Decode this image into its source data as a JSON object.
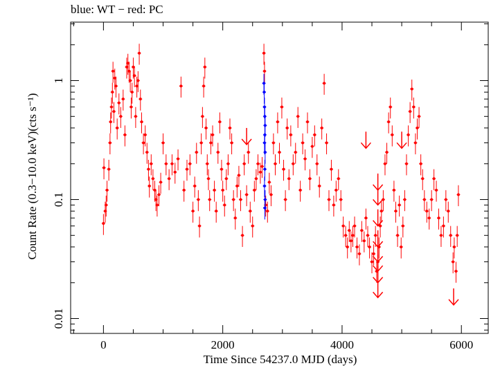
{
  "chart_data": {
    "type": "scatter",
    "title": "blue: WT − red: PC",
    "xlabel": "Time Since 54237.0 MJD (days)",
    "ylabel": "Count Rate (0.3−10.0 keV)(cts s⁻¹)",
    "xlim": [
      -550,
      6450
    ],
    "ylim": [
      0.0075,
      3.1
    ],
    "yscale": "log",
    "grid": false,
    "x_ticks": [
      0,
      2000,
      4000,
      6000
    ],
    "x_tick_labels": [
      "0",
      "2000",
      "4000",
      "6000"
    ],
    "y_ticks": [
      0.01,
      0.1,
      1
    ],
    "y_tick_labels": [
      "0.01",
      "0.1",
      "1"
    ],
    "series": [
      {
        "name": "PC",
        "color": "#ff0000",
        "points": [
          [
            0,
            0.063
          ],
          [
            8,
            0.185
          ],
          [
            30,
            0.08
          ],
          [
            45,
            0.09
          ],
          [
            60,
            0.12
          ],
          [
            90,
            0.18
          ],
          [
            110,
            0.3
          ],
          [
            120,
            0.45
          ],
          [
            135,
            0.6
          ],
          [
            150,
            0.8
          ],
          [
            160,
            1.2
          ],
          [
            175,
            0.55
          ],
          [
            190,
            1.05
          ],
          [
            210,
            0.9
          ],
          [
            230,
            0.4
          ],
          [
            260,
            0.65
          ],
          [
            290,
            0.5
          ],
          [
            330,
            0.7
          ],
          [
            360,
            0.35
          ],
          [
            390,
            1.3
          ],
          [
            410,
            1.4
          ],
          [
            430,
            1.2
          ],
          [
            450,
            1.0
          ],
          [
            465,
            0.6
          ],
          [
            480,
            0.8
          ],
          [
            500,
            1.3
          ],
          [
            520,
            1.1
          ],
          [
            540,
            0.5
          ],
          [
            560,
            0.9
          ],
          [
            580,
            1.0
          ],
          [
            600,
            1.7
          ],
          [
            620,
            0.7
          ],
          [
            640,
            0.45
          ],
          [
            670,
            0.3
          ],
          [
            700,
            0.35
          ],
          [
            730,
            0.25
          ],
          [
            755,
            0.18
          ],
          [
            770,
            0.13
          ],
          [
            800,
            0.2
          ],
          [
            830,
            0.15
          ],
          [
            860,
            0.12
          ],
          [
            880,
            0.1
          ],
          [
            900,
            0.09
          ],
          [
            930,
            0.11
          ],
          [
            960,
            0.14
          ],
          [
            1000,
            0.3
          ],
          [
            1050,
            0.2
          ],
          [
            1100,
            0.15
          ],
          [
            1150,
            0.2
          ],
          [
            1200,
            0.17
          ],
          [
            1250,
            0.22
          ],
          [
            1300,
            0.9
          ],
          [
            1350,
            0.12
          ],
          [
            1400,
            0.18
          ],
          [
            1450,
            0.2
          ],
          [
            1500,
            0.08
          ],
          [
            1530,
            0.13
          ],
          [
            1560,
            0.25
          ],
          [
            1590,
            0.1
          ],
          [
            1610,
            0.06
          ],
          [
            1640,
            0.3
          ],
          [
            1660,
            0.5
          ],
          [
            1680,
            0.9
          ],
          [
            1700,
            1.3
          ],
          [
            1720,
            0.4
          ],
          [
            1740,
            0.2
          ],
          [
            1760,
            0.15
          ],
          [
            1780,
            0.1
          ],
          [
            1800,
            0.3
          ],
          [
            1830,
            0.35
          ],
          [
            1860,
            0.12
          ],
          [
            1890,
            0.08
          ],
          [
            1920,
            0.25
          ],
          [
            1950,
            0.45
          ],
          [
            1980,
            0.18
          ],
          [
            2000,
            0.12
          ],
          [
            2030,
            0.09
          ],
          [
            2060,
            0.15
          ],
          [
            2090,
            0.2
          ],
          [
            2120,
            0.4
          ],
          [
            2150,
            0.3
          ],
          [
            2180,
            0.1
          ],
          [
            2210,
            0.07
          ],
          [
            2240,
            0.13
          ],
          [
            2270,
            0.16
          ],
          [
            2300,
            0.1
          ],
          [
            2330,
            0.05
          ],
          [
            2360,
            0.2
          ],
          [
            2400,
            0.11
          ],
          [
            2430,
            0.25
          ],
          [
            2460,
            0.08
          ],
          [
            2500,
            0.06
          ],
          [
            2530,
            0.12
          ],
          [
            2560,
            0.15
          ],
          [
            2590,
            0.2
          ],
          [
            2630,
            0.17
          ],
          [
            2660,
            0.19
          ],
          [
            2690,
            1.7
          ],
          [
            2700,
            1.2
          ],
          [
            2720,
            0.09
          ],
          [
            2750,
            0.08
          ],
          [
            2780,
            0.14
          ],
          [
            2810,
            0.11
          ],
          [
            2850,
            0.3
          ],
          [
            2880,
            0.2
          ],
          [
            2920,
            0.45
          ],
          [
            2950,
            0.25
          ],
          [
            2990,
            0.6
          ],
          [
            3020,
            0.18
          ],
          [
            3050,
            0.1
          ],
          [
            3080,
            0.4
          ],
          [
            3110,
            0.15
          ],
          [
            3140,
            0.35
          ],
          [
            3180,
            0.2
          ],
          [
            3220,
            0.25
          ],
          [
            3260,
            0.5
          ],
          [
            3300,
            0.12
          ],
          [
            3340,
            0.3
          ],
          [
            3380,
            0.22
          ],
          [
            3420,
            0.45
          ],
          [
            3460,
            0.15
          ],
          [
            3500,
            0.28
          ],
          [
            3540,
            0.35
          ],
          [
            3580,
            0.2
          ],
          [
            3620,
            0.13
          ],
          [
            3660,
            0.4
          ],
          [
            3700,
            0.95
          ],
          [
            3740,
            0.3
          ],
          [
            3780,
            0.1
          ],
          [
            3820,
            0.18
          ],
          [
            3860,
            0.09
          ],
          [
            3900,
            0.12
          ],
          [
            3940,
            0.15
          ],
          [
            3980,
            0.1
          ],
          [
            4020,
            0.06
          ],
          [
            4060,
            0.05
          ],
          [
            4090,
            0.04
          ],
          [
            4120,
            0.055
          ],
          [
            4150,
            0.045
          ],
          [
            4180,
            0.05
          ],
          [
            4210,
            0.06
          ],
          [
            4250,
            0.04
          ],
          [
            4290,
            0.035
          ],
          [
            4330,
            0.055
          ],
          [
            4370,
            0.045
          ],
          [
            4400,
            0.07
          ],
          [
            4430,
            0.05
          ],
          [
            4460,
            0.04
          ],
          [
            4500,
            0.03
          ],
          [
            4530,
            0.035
          ],
          [
            4560,
            0.05
          ],
          [
            4580,
            0.025
          ],
          [
            4600,
            0.03
          ],
          [
            4620,
            0.04
          ],
          [
            4640,
            0.06
          ],
          [
            4660,
            0.08
          ],
          [
            4690,
            0.1
          ],
          [
            4720,
            0.2
          ],
          [
            4750,
            0.25
          ],
          [
            4780,
            0.45
          ],
          [
            4810,
            0.6
          ],
          [
            4840,
            0.35
          ],
          [
            4870,
            0.12
          ],
          [
            4900,
            0.08
          ],
          [
            4930,
            0.05
          ],
          [
            4960,
            0.09
          ],
          [
            4990,
            0.04
          ],
          [
            5020,
            0.06
          ],
          [
            5050,
            0.1
          ],
          [
            5080,
            0.2
          ],
          [
            5110,
            0.35
          ],
          [
            5140,
            0.55
          ],
          [
            5170,
            0.85
          ],
          [
            5200,
            0.6
          ],
          [
            5230,
            0.3
          ],
          [
            5260,
            0.4
          ],
          [
            5290,
            0.5
          ],
          [
            5320,
            0.2
          ],
          [
            5350,
            0.15
          ],
          [
            5380,
            0.1
          ],
          [
            5420,
            0.08
          ],
          [
            5460,
            0.07
          ],
          [
            5500,
            0.1
          ],
          [
            5540,
            0.15
          ],
          [
            5580,
            0.12
          ],
          [
            5620,
            0.07
          ],
          [
            5660,
            0.05
          ],
          [
            5700,
            0.06
          ],
          [
            5740,
            0.1
          ],
          [
            5780,
            0.08
          ],
          [
            5820,
            0.05
          ],
          [
            5860,
            0.03
          ],
          [
            5880,
            0.04
          ],
          [
            5910,
            0.025
          ],
          [
            5930,
            0.05
          ],
          [
            5950,
            0.11
          ]
        ]
      },
      {
        "name": "WT",
        "color": "#0000ff",
        "points": [
          [
            2690,
            0.95
          ],
          [
            2695,
            0.8
          ],
          [
            2700,
            0.6
          ],
          [
            2705,
            0.5
          ],
          [
            2710,
            0.42
          ],
          [
            2705,
            0.35
          ],
          [
            2700,
            0.3
          ],
          [
            2710,
            0.25
          ],
          [
            2705,
            0.18
          ],
          [
            2700,
            0.13
          ],
          [
            2710,
            0.1
          ],
          [
            2705,
            0.085
          ]
        ]
      }
    ],
    "upper_limits": [
      {
        "x": 2400,
        "y": 0.29
      },
      {
        "x": 4400,
        "y": 0.27
      },
      {
        "x": 4600,
        "y": 0.12
      },
      {
        "x": 4600,
        "y": 0.09
      },
      {
        "x": 4600,
        "y": 0.06
      },
      {
        "x": 4600,
        "y": 0.04
      },
      {
        "x": 4600,
        "y": 0.03
      },
      {
        "x": 4600,
        "y": 0.025
      },
      {
        "x": 4600,
        "y": 0.02
      },
      {
        "x": 4600,
        "y": 0.015
      },
      {
        "x": 5000,
        "y": 0.27
      },
      {
        "x": 5870,
        "y": 0.013
      }
    ]
  }
}
